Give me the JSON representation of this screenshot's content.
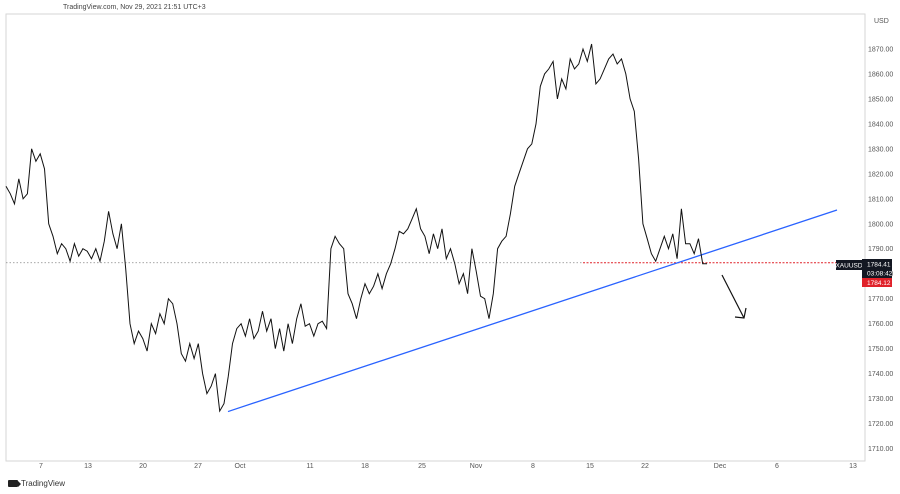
{
  "header": {
    "source": "TradingView.com, Nov 29, 2021 21:51 UTC+3"
  },
  "brand": {
    "name": "TradingView"
  },
  "chart_data": {
    "type": "line",
    "title": "",
    "currency_label": "USD",
    "symbol": "XAUUSD",
    "last_price_label": "1784.41",
    "countdown_label": "03:08:42",
    "second_price_label": "1784.12",
    "y_ticks": [
      "1710.00",
      "1720.00",
      "1730.00",
      "1740.00",
      "1750.00",
      "1760.00",
      "1770.00",
      "1780.00",
      "1790.00",
      "1800.00",
      "1810.00",
      "1820.00",
      "1830.00",
      "1840.00",
      "1850.00",
      "1860.00",
      "1870.00"
    ],
    "x_ticks": [
      "7",
      "13",
      "20",
      "27",
      "Oct",
      "11",
      "18",
      "25",
      "Nov",
      "8",
      "15",
      "22",
      "Dec",
      "6",
      "13"
    ],
    "ylim": [
      1705,
      1884
    ],
    "series": [
      {
        "values": [
          1815,
          1812,
          1808,
          1818,
          1810,
          1812,
          1830,
          1825,
          1828,
          1822,
          1800,
          1795,
          1788,
          1792,
          1790,
          1785,
          1792,
          1787,
          1790,
          1789,
          1786,
          1790,
          1785,
          1793,
          1805,
          1796,
          1790,
          1800,
          1782,
          1760,
          1752,
          1757,
          1754,
          1749,
          1760,
          1756,
          1764,
          1760,
          1770,
          1768,
          1760,
          1748,
          1745,
          1752,
          1746,
          1752,
          1740,
          1732,
          1735,
          1740,
          1725,
          1728,
          1739,
          1752,
          1758,
          1760,
          1755,
          1762,
          1754,
          1757,
          1765,
          1757,
          1762,
          1750,
          1758,
          1749,
          1760,
          1752,
          1762,
          1768,
          1759,
          1760,
          1755,
          1760,
          1761,
          1758,
          1790,
          1795,
          1792,
          1790,
          1772,
          1768,
          1762,
          1770,
          1776,
          1772,
          1775,
          1780,
          1774,
          1780,
          1784,
          1790,
          1797,
          1796,
          1798,
          1802,
          1806,
          1798,
          1795,
          1788,
          1796,
          1790,
          1798,
          1786,
          1790,
          1784,
          1776,
          1780,
          1772,
          1790,
          1781,
          1771,
          1770,
          1762,
          1772,
          1790,
          1793,
          1795,
          1804,
          1815,
          1820,
          1825,
          1830,
          1832,
          1840,
          1855,
          1860,
          1862,
          1865,
          1850,
          1858,
          1854,
          1866,
          1862,
          1864,
          1870,
          1865,
          1872,
          1856,
          1858,
          1862,
          1866,
          1868,
          1864,
          1866,
          1860,
          1850,
          1845,
          1826,
          1800,
          1794,
          1788,
          1785,
          1790,
          1795,
          1790,
          1796,
          1786,
          1806,
          1792,
          1792,
          1788,
          1794,
          1784,
          1784
        ]
      }
    ],
    "support_line": {
      "start": [
        1724.8,
        0.0
      ],
      "end": [
        1805.5,
        1.0
      ]
    },
    "current_price": 1784.4
  }
}
